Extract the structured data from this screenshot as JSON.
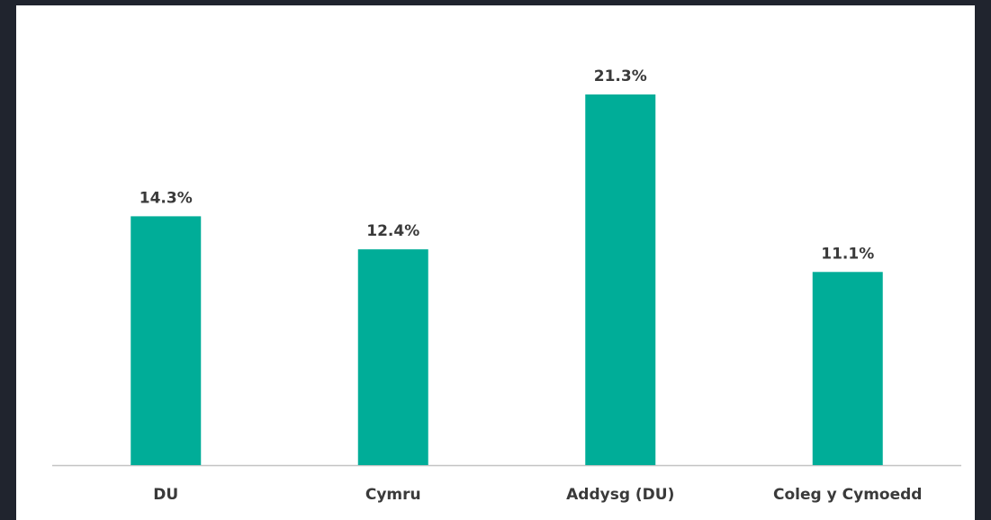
{
  "chart_data": {
    "type": "bar",
    "categories": [
      "DU",
      "Cymru",
      "Addysg (DU)",
      "Coleg y Cymoedd"
    ],
    "values": [
      14.3,
      12.4,
      21.3,
      11.1
    ],
    "value_labels": [
      "14.3%",
      "12.4%",
      "21.3%",
      "11.1%"
    ],
    "color": "#00ad98"
  }
}
